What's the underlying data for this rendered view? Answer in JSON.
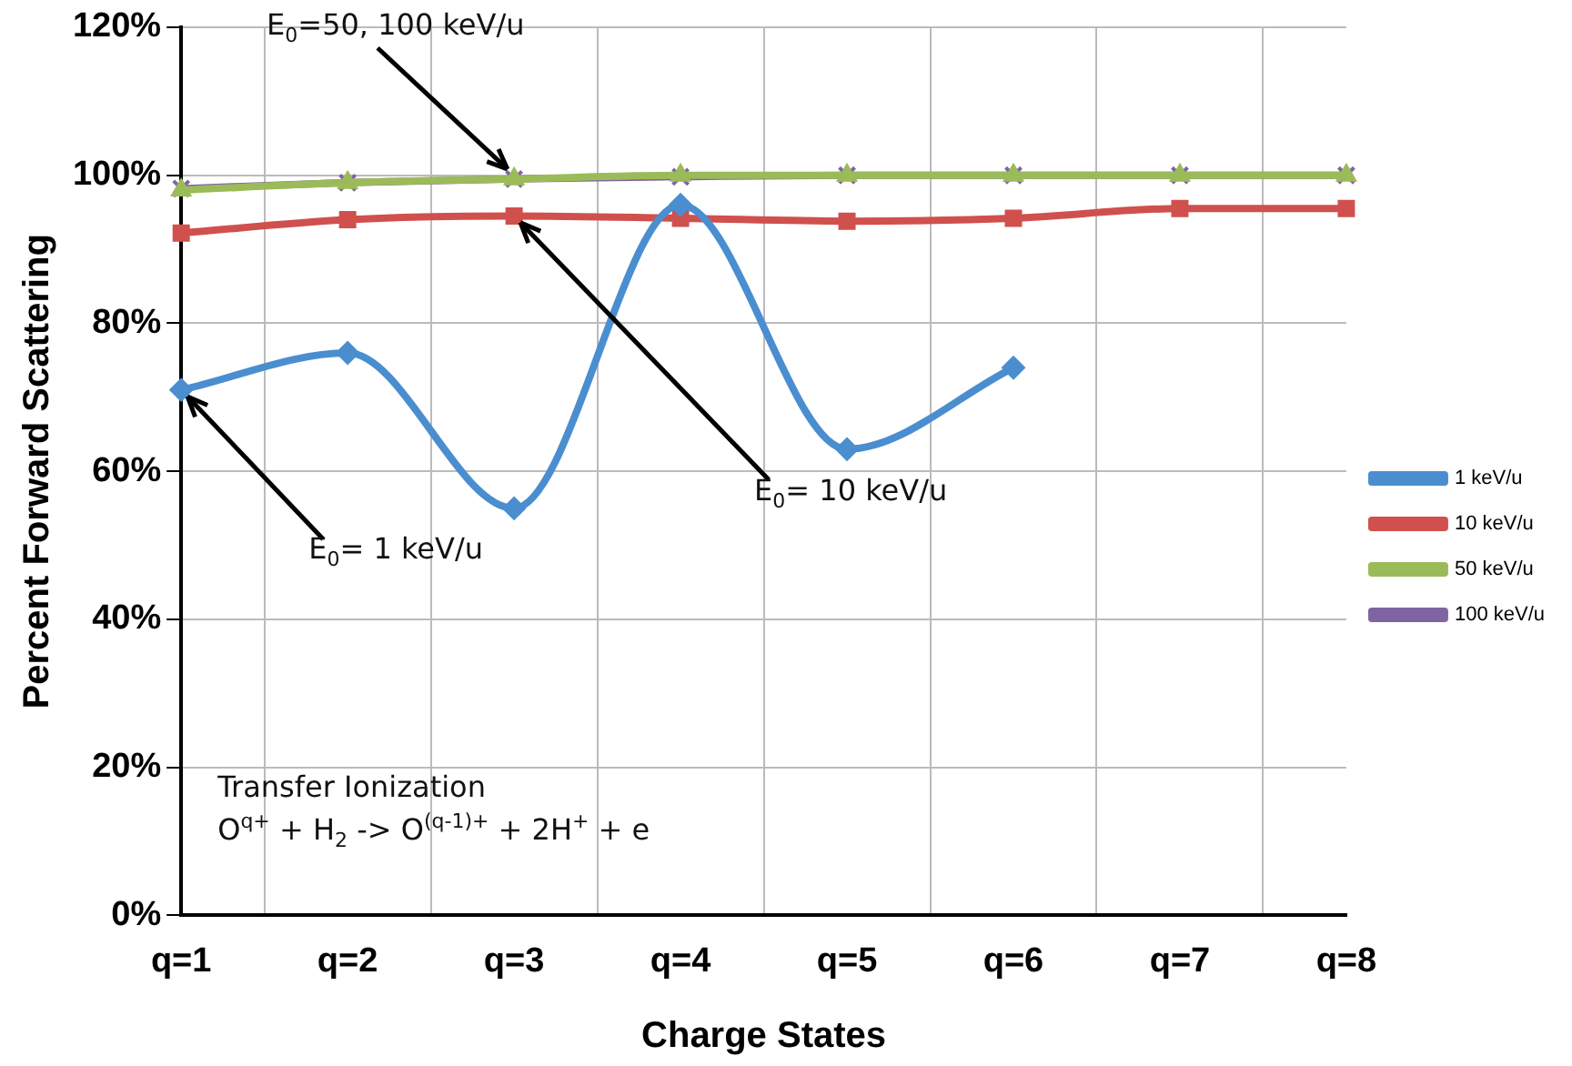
{
  "chart_data": {
    "type": "line",
    "xlabel": "Charge States",
    "ylabel": "Percent Forward Scattering",
    "categories": [
      "q=1",
      "q=2",
      "q=3",
      "q=4",
      "q=5",
      "q=6",
      "q=7",
      "q=8"
    ],
    "series": [
      {
        "name": "1 keV/u",
        "color": "#4a8ed0",
        "marker": "diamond",
        "values": [
          71,
          76,
          55,
          96,
          63,
          74,
          null,
          null
        ]
      },
      {
        "name": "10 keV/u",
        "color": "#d0504d",
        "marker": "square",
        "values": [
          92.2,
          94,
          94.5,
          94.2,
          93.8,
          94.2,
          95.5,
          95.5
        ]
      },
      {
        "name": "50 keV/u",
        "color": "#9bbb59",
        "marker": "triangle",
        "values": [
          98,
          99,
          99.5,
          100,
          100,
          100,
          100,
          100
        ]
      },
      {
        "name": "100 keV/u",
        "color": "#8064a2",
        "marker": "cross",
        "values": [
          98.2,
          99,
          99.5,
          99.8,
          100,
          100,
          100,
          100
        ]
      }
    ],
    "ylim": [
      0,
      120
    ],
    "yticks": [
      {
        "value": 0,
        "label": "0%"
      },
      {
        "value": 20,
        "label": "20%"
      },
      {
        "value": 40,
        "label": "40%"
      },
      {
        "value": 60,
        "label": "60%"
      },
      {
        "value": 80,
        "label": "80%"
      },
      {
        "value": 100,
        "label": "100%"
      },
      {
        "value": 120,
        "label": "120%"
      }
    ],
    "grid": true,
    "legend": "right",
    "annotations": [
      {
        "text": "E$_{0}$=50, 100 keV/u",
        "x": "q=3",
        "y": 100
      },
      {
        "text": "E$_{0}$= 10 keV/u",
        "x": "q=3",
        "y": 94.5
      },
      {
        "text": "E$_{0}$= 1 keV/u",
        "x": "q=1",
        "y": 71
      },
      "Transfer Ionization",
      "O$^{q+}$ + H$_{2}$ -> O$^{(q-1)+}$ + 2H$^{+}$ + e"
    ]
  }
}
